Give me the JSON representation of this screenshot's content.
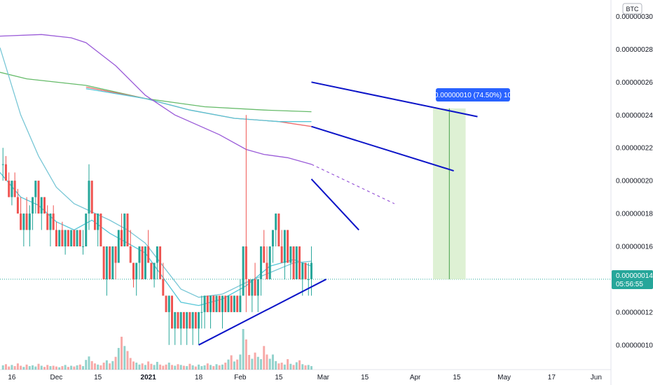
{
  "currency_badge": "BTC",
  "colors": {
    "up": "#26a69a",
    "down": "#ef5350",
    "ma_fast": "#56c7d8",
    "ma_slow": "#79c7d6",
    "ma_50": "#ef6c6c",
    "ma_100": "#9a5bd8",
    "ma_200": "#66bb6a",
    "trendline": "#0c14c8",
    "measure_fill": "#d8efcc",
    "measure_line": "#43a047",
    "measure_label_bg": "#2962ff",
    "last_price_bg": "#26a69a"
  },
  "last_price": {
    "value": "0.00000014",
    "countdown": "05:56:55"
  },
  "measure": {
    "label": "0.00000010 (74.50%) 10"
  },
  "chart_data": {
    "type": "candlestick",
    "y_axis": {
      "ticks": [
        "0.00000030",
        "0.00000028",
        "0.00000026",
        "0.00000024",
        "0.00000022",
        "0.00000020",
        "0.00000018",
        "0.00000016",
        "0.00000012",
        "0.00000010"
      ],
      "tick_values": [
        30,
        28,
        26,
        24,
        22,
        20,
        18,
        16,
        12,
        10
      ],
      "ylim": [
        8.5,
        31
      ]
    },
    "x_axis": {
      "ticks": [
        "16",
        "Dec",
        "15",
        "2021",
        "18",
        "Feb",
        "15",
        "Mar",
        "15",
        "Apr",
        "15",
        "May",
        "17",
        "Jun"
      ],
      "tick_days": [
        -15,
        0,
        14,
        31,
        48,
        62,
        75,
        90,
        104,
        121,
        135,
        151,
        167,
        182
      ],
      "bold_ticks": [
        "2021"
      ]
    },
    "x_range_days": [
      -19,
      187
    ],
    "candles": [
      [
        -18,
        21,
        22,
        20,
        21
      ],
      [
        -17,
        21,
        21.5,
        20,
        20
      ],
      [
        -16,
        20,
        20.5,
        19,
        19
      ],
      [
        -15,
        19,
        20,
        18.5,
        20
      ],
      [
        -14,
        20,
        20.5,
        19,
        19
      ],
      [
        -13,
        19,
        19.5,
        18,
        18
      ],
      [
        -12,
        18,
        19,
        17,
        17
      ],
      [
        -11,
        17,
        18,
        16,
        18
      ],
      [
        -10,
        18,
        19,
        17,
        17
      ],
      [
        -9,
        17,
        18.5,
        16,
        18
      ],
      [
        -8,
        18,
        19,
        17,
        19
      ],
      [
        -7,
        19,
        20,
        18,
        20
      ],
      [
        -6,
        20,
        20,
        18,
        18
      ],
      [
        -5,
        18,
        19,
        17,
        19
      ],
      [
        -4,
        19,
        19,
        18,
        18
      ],
      [
        -3,
        18,
        18.5,
        17,
        17
      ],
      [
        -2,
        17,
        18,
        16,
        18
      ],
      [
        -1,
        18,
        18.5,
        17,
        17
      ],
      [
        0,
        17,
        17.5,
        16,
        16
      ],
      [
        1,
        16,
        17,
        16,
        17
      ],
      [
        2,
        17,
        17.5,
        16,
        16
      ],
      [
        3,
        16,
        17,
        15.5,
        17
      ],
      [
        4,
        17,
        17,
        16,
        16
      ],
      [
        5,
        16,
        17,
        16,
        17
      ],
      [
        6,
        17,
        17,
        16,
        16
      ],
      [
        7,
        16,
        17,
        16,
        17
      ],
      [
        8,
        17,
        17,
        16,
        16
      ],
      [
        9,
        16,
        17,
        15.5,
        16
      ],
      [
        10,
        16,
        18,
        16,
        18
      ],
      [
        11,
        18,
        21,
        17,
        20
      ],
      [
        12,
        20,
        20,
        18,
        18
      ],
      [
        13,
        18,
        18,
        17,
        17
      ],
      [
        14,
        17,
        18,
        16,
        18
      ],
      [
        15,
        18,
        18,
        16,
        16
      ],
      [
        16,
        16,
        16,
        14,
        14
      ],
      [
        17,
        14,
        16,
        13,
        16
      ],
      [
        18,
        16,
        16,
        14,
        14
      ],
      [
        19,
        14,
        16,
        14,
        16
      ],
      [
        20,
        16,
        16,
        14,
        15
      ],
      [
        21,
        15,
        17,
        15,
        17
      ],
      [
        22,
        17,
        18,
        16,
        16
      ],
      [
        23,
        16,
        18,
        16,
        18
      ],
      [
        24,
        18,
        18,
        16,
        16
      ],
      [
        25,
        16,
        17,
        15,
        15
      ],
      [
        26,
        15,
        15,
        13.5,
        14
      ],
      [
        27,
        14,
        15,
        13,
        15
      ],
      [
        28,
        15,
        16,
        14,
        16
      ],
      [
        29,
        16,
        16,
        14,
        14
      ],
      [
        30,
        14,
        16,
        14,
        16
      ],
      [
        31,
        16,
        17,
        15,
        15
      ],
      [
        32,
        15,
        15,
        14,
        14
      ],
      [
        33,
        14,
        15,
        13.5,
        15
      ],
      [
        34,
        15,
        16,
        14,
        16
      ],
      [
        35,
        16,
        16,
        14,
        14
      ],
      [
        36,
        14,
        15,
        13,
        13
      ],
      [
        37,
        13,
        13,
        12,
        12
      ],
      [
        38,
        12,
        13,
        10,
        13
      ],
      [
        39,
        13,
        13,
        11,
        11
      ],
      [
        40,
        11,
        12,
        10,
        12
      ],
      [
        41,
        12,
        12,
        11,
        11
      ],
      [
        42,
        11,
        12,
        10,
        12
      ],
      [
        43,
        12,
        12,
        11,
        11
      ],
      [
        44,
        11,
        12,
        10,
        12
      ],
      [
        45,
        12,
        12,
        11,
        11
      ],
      [
        46,
        11,
        12,
        10,
        12
      ],
      [
        47,
        12,
        12,
        11,
        11
      ],
      [
        48,
        11,
        12,
        10,
        12
      ],
      [
        49,
        12,
        13,
        11,
        12
      ],
      [
        50,
        12,
        13,
        11,
        13
      ],
      [
        51,
        13,
        13,
        12,
        12
      ],
      [
        52,
        12,
        13,
        11,
        13
      ],
      [
        53,
        13,
        13,
        12,
        12
      ],
      [
        54,
        12,
        13,
        12,
        13
      ],
      [
        55,
        13,
        13,
        12,
        12
      ],
      [
        56,
        12,
        13,
        11,
        13
      ],
      [
        57,
        13,
        13,
        12,
        12
      ],
      [
        58,
        12,
        13,
        12,
        13
      ],
      [
        59,
        13,
        13,
        12,
        12
      ],
      [
        60,
        12,
        13,
        12,
        13
      ],
      [
        61,
        13,
        13,
        12,
        12
      ],
      [
        62,
        12,
        14,
        12,
        13
      ],
      [
        63,
        13,
        16,
        13,
        16
      ],
      [
        64,
        16,
        24,
        12,
        14
      ],
      [
        65,
        14,
        14,
        13,
        13
      ],
      [
        66,
        13,
        14,
        12,
        14
      ],
      [
        67,
        14,
        15,
        13,
        13
      ],
      [
        68,
        13,
        14,
        12,
        14
      ],
      [
        69,
        14,
        16,
        13,
        16
      ],
      [
        70,
        16,
        17,
        15,
        15
      ],
      [
        71,
        15,
        16,
        14,
        14
      ],
      [
        72,
        14,
        16,
        14,
        16
      ],
      [
        73,
        16,
        17,
        15,
        17
      ],
      [
        74,
        17,
        18,
        16,
        18
      ],
      [
        75,
        18,
        18,
        16,
        16
      ],
      [
        76,
        16,
        17,
        15,
        15
      ],
      [
        77,
        15,
        17,
        14,
        17
      ],
      [
        78,
        17,
        17,
        15,
        15
      ],
      [
        79,
        15,
        16,
        14,
        16
      ],
      [
        80,
        16,
        16,
        14,
        14
      ],
      [
        81,
        14,
        16,
        14,
        16
      ],
      [
        82,
        16,
        16,
        14,
        14
      ],
      [
        83,
        14,
        15,
        13,
        15
      ],
      [
        84,
        15,
        15,
        14,
        14
      ],
      [
        85,
        14,
        15,
        13,
        14
      ],
      [
        86,
        14,
        16,
        13,
        15
      ]
    ],
    "volumes": [
      [
        -18,
        1.1
      ],
      [
        -17,
        1.4
      ],
      [
        -16,
        0.8
      ],
      [
        -15,
        1.2
      ],
      [
        -14,
        0.9
      ],
      [
        -13,
        1.6
      ],
      [
        -12,
        1.0
      ],
      [
        -11,
        0.7
      ],
      [
        -10,
        1.3
      ],
      [
        -9,
        0.9
      ],
      [
        -8,
        1.1
      ],
      [
        -7,
        0.8
      ],
      [
        -6,
        1.5
      ],
      [
        -5,
        1.0
      ],
      [
        -4,
        0.7
      ],
      [
        -3,
        1.2
      ],
      [
        -2,
        0.9
      ],
      [
        -1,
        1.0
      ],
      [
        0,
        0.8
      ],
      [
        1,
        0.6
      ],
      [
        2,
        0.9
      ],
      [
        3,
        1.2
      ],
      [
        4,
        0.7
      ],
      [
        5,
        1.0
      ],
      [
        6,
        0.8
      ],
      [
        7,
        1.1
      ],
      [
        8,
        1.3
      ],
      [
        9,
        0.9
      ],
      [
        10,
        2.5
      ],
      [
        11,
        3.4
      ],
      [
        12,
        2.2
      ],
      [
        13,
        1.6
      ],
      [
        14,
        1.3
      ],
      [
        15,
        1.1
      ],
      [
        16,
        1.8
      ],
      [
        17,
        2.4
      ],
      [
        18,
        1.6
      ],
      [
        19,
        2.2
      ],
      [
        20,
        3.3
      ],
      [
        21,
        5.6
      ],
      [
        22,
        8.5
      ],
      [
        23,
        6.1
      ],
      [
        24,
        4.8
      ],
      [
        25,
        3.0
      ],
      [
        26,
        2.1
      ],
      [
        27,
        1.8
      ],
      [
        28,
        1.3
      ],
      [
        29,
        1.6
      ],
      [
        30,
        1.2
      ],
      [
        31,
        2.1
      ],
      [
        32,
        1.5
      ],
      [
        33,
        1.2
      ],
      [
        34,
        2.0
      ],
      [
        35,
        1.3
      ],
      [
        36,
        1.0
      ],
      [
        37,
        1.3
      ],
      [
        38,
        1.8
      ],
      [
        39,
        1.2
      ],
      [
        40,
        1.0
      ],
      [
        41,
        1.4
      ],
      [
        42,
        1.2
      ],
      [
        43,
        1.0
      ],
      [
        44,
        0.9
      ],
      [
        45,
        1.5
      ],
      [
        46,
        1.1
      ],
      [
        47,
        0.8
      ],
      [
        48,
        1.3
      ],
      [
        49,
        0.9
      ],
      [
        50,
        1.1
      ],
      [
        51,
        1.6
      ],
      [
        52,
        1.2
      ],
      [
        53,
        0.9
      ],
      [
        54,
        1.4
      ],
      [
        55,
        1.1
      ],
      [
        56,
        1.3
      ],
      [
        57,
        1.8
      ],
      [
        58,
        2.6
      ],
      [
        59,
        3.7
      ],
      [
        60,
        2.1
      ],
      [
        61,
        2.6
      ],
      [
        62,
        3.9
      ],
      [
        63,
        10.5
      ],
      [
        64,
        7.8
      ],
      [
        65,
        3.8
      ],
      [
        66,
        2.8
      ],
      [
        67,
        4.4
      ],
      [
        68,
        3.3
      ],
      [
        69,
        2.7
      ],
      [
        70,
        6.1
      ],
      [
        71,
        3.9
      ],
      [
        72,
        2.8
      ],
      [
        73,
        3.9
      ],
      [
        74,
        2.2
      ],
      [
        75,
        1.6
      ],
      [
        76,
        1.8
      ],
      [
        77,
        1.3
      ],
      [
        78,
        2.7
      ],
      [
        79,
        1.5
      ],
      [
        80,
        1.2
      ],
      [
        81,
        1.9
      ],
      [
        82,
        2.4
      ],
      [
        83,
        1.4
      ],
      [
        84,
        1.1
      ],
      [
        85,
        1.2
      ],
      [
        86,
        0.9
      ]
    ],
    "moving_averages": [
      {
        "key": "ma_200",
        "points": [
          [
            -19,
            26.6
          ],
          [
            -10,
            26.2
          ],
          [
            10,
            25.8
          ],
          [
            30,
            25.0
          ],
          [
            50,
            24.5
          ],
          [
            70,
            24.3
          ],
          [
            86,
            24.2
          ]
        ]
      },
      {
        "key": "ma_50",
        "points": [
          [
            10,
            25.7
          ],
          [
            30,
            25.0
          ],
          [
            45,
            24.3
          ],
          [
            60,
            23.8
          ],
          [
            75,
            23.6
          ],
          [
            86,
            23.3
          ]
        ]
      },
      {
        "key": "ma_fast",
        "points": [
          [
            10,
            25.6
          ],
          [
            30,
            25.0
          ],
          [
            45,
            24.3
          ],
          [
            60,
            23.8
          ],
          [
            75,
            23.6
          ],
          [
            86,
            23.6
          ]
        ]
      },
      {
        "key": "ma_100",
        "points": [
          [
            -19,
            28.8
          ],
          [
            -5,
            28.9
          ],
          [
            5,
            28.7
          ],
          [
            10,
            28.4
          ],
          [
            20,
            27.0
          ],
          [
            30,
            25.2
          ],
          [
            40,
            24.0
          ],
          [
            55,
            22.8
          ],
          [
            64,
            21.9
          ],
          [
            70,
            21.6
          ],
          [
            78,
            21.4
          ],
          [
            86,
            21.0
          ]
        ]
      },
      {
        "key": "ma_slow",
        "points": [
          [
            -19,
            28.1
          ],
          [
            -12,
            24.0
          ],
          [
            -6,
            21.5
          ],
          [
            0,
            19.6
          ],
          [
            6,
            18.6
          ],
          [
            12,
            18.1
          ],
          [
            18,
            17.6
          ],
          [
            24,
            17.0
          ],
          [
            30,
            16.2
          ],
          [
            36,
            14.8
          ],
          [
            42,
            13.4
          ],
          [
            48,
            12.9
          ],
          [
            56,
            13.1
          ],
          [
            64,
            13.8
          ],
          [
            72,
            14.4
          ],
          [
            80,
            15.0
          ],
          [
            86,
            15.1
          ]
        ]
      },
      {
        "key": "ma_fast",
        "points": [
          [
            -19,
            20.5
          ],
          [
            -12,
            19.0
          ],
          [
            -6,
            18.5
          ],
          [
            0,
            17.5
          ],
          [
            6,
            17.0
          ],
          [
            12,
            17.6
          ],
          [
            18,
            16.8
          ],
          [
            24,
            16.2
          ],
          [
            30,
            15.6
          ],
          [
            36,
            14.1
          ],
          [
            42,
            12.6
          ],
          [
            48,
            12.4
          ],
          [
            56,
            12.8
          ],
          [
            64,
            13.6
          ],
          [
            72,
            14.8
          ],
          [
            80,
            15.2
          ],
          [
            86,
            14.8
          ]
        ]
      }
    ],
    "ma_projection": [
      [
        86,
        21.0
      ],
      [
        100,
        19.8
      ],
      [
        114,
        18.6
      ]
    ],
    "trendlines": [
      [
        [
          48,
          10
        ],
        [
          91,
          14
        ]
      ],
      [
        [
          86,
          26.0
        ],
        [
          142,
          23.9
        ]
      ],
      [
        [
          86,
          23.3
        ],
        [
          134,
          20.6
        ]
      ],
      [
        [
          86,
          20.1
        ],
        [
          102,
          17.0
        ]
      ]
    ],
    "measure_box": {
      "x0": 127,
      "x1": 138,
      "y0": 14,
      "y1": 24.4
    }
  }
}
